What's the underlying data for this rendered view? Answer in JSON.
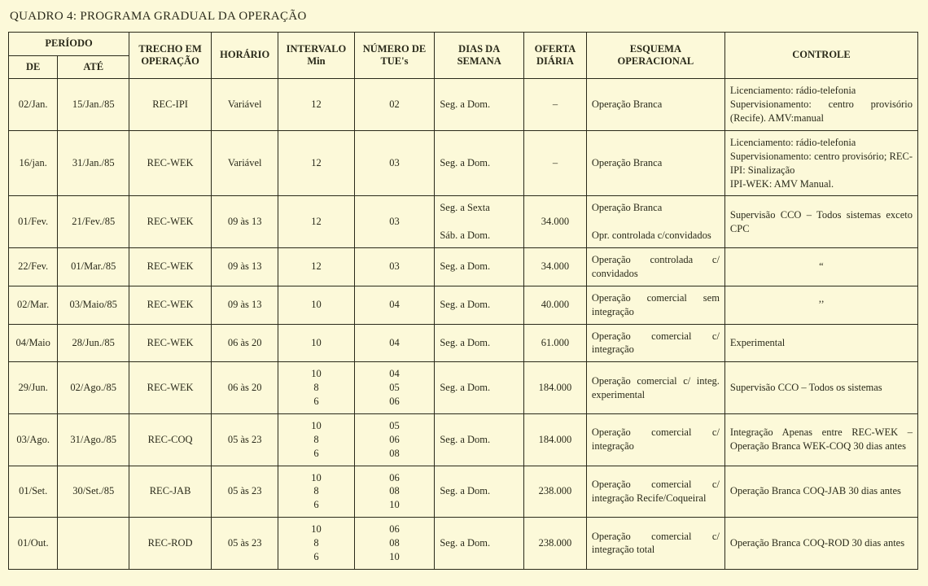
{
  "colors": {
    "background": "#fcf9d9",
    "border": "#2a2a1a",
    "text": "#2a2a1a"
  },
  "typography": {
    "family": "Times New Roman",
    "title_size_pt": 15,
    "body_size_pt": 12.5
  },
  "title": "QUADRO 4: PROGRAMA GRADUAL DA OPERAÇÃO",
  "headers": {
    "periodo": "PERÍODO",
    "de": "DE",
    "ate": "ATÉ",
    "trecho": "TRECHO EM OPERAÇÃO",
    "horario": "HORÁRIO",
    "intervalo": "INTERVALO\nMin",
    "numero_tues": "NÚMERO DE\nTUE's",
    "dias": "DIAS DA\nSEMANA",
    "oferta": "OFERTA\nDIÁRIA",
    "esquema": "ESQUEMA\nOPERACIONAL",
    "controle": "CONTROLE"
  },
  "rows": [
    {
      "de": "02/Jan.",
      "ate": "15/Jan./85",
      "trecho": "REC-IPI",
      "horario": "Variável",
      "intervalo": "12",
      "tues": "02",
      "dias": "Seg. a Dom.",
      "oferta": "–",
      "esquema": "Operação Branca",
      "controle": "Licenciamento: rádio-telefonia\nSupervisionamento: centro provisório (Recife). AMV:manual"
    },
    {
      "de": "16/jan.",
      "ate": "31/Jan./85",
      "trecho": "REC-WEK",
      "horario": "Variável",
      "intervalo": "12",
      "tues": "03",
      "dias": "Seg. a Dom.",
      "oferta": "–",
      "esquema": "Operação Branca",
      "controle": "Licenciamento: rádio-telefonia\nSupervisionamento: centro provisório; REC-IPI: Sinalização\nIPI-WEK: AMV Manual."
    },
    {
      "de": "01/Fev.",
      "ate": "21/Fev./85",
      "trecho": "REC-WEK",
      "horario": "09 às 13",
      "intervalo": "12",
      "tues": "03",
      "dias": "Seg. a Sexta\n\nSáb. a Dom.",
      "oferta": "34.000",
      "esquema": "Operação Branca\n\nOpr. controlada c/convidados",
      "controle": "Supervisão CCO – Todos sistemas exceto CPC"
    },
    {
      "de": "22/Fev.",
      "ate": "01/Mar./85",
      "trecho": "REC-WEK",
      "horario": "09 às 13",
      "intervalo": "12",
      "tues": "03",
      "dias": "Seg. a Dom.",
      "oferta": "34.000",
      "esquema": "Operação controlada c/ convidados",
      "controle": "“"
    },
    {
      "de": "02/Mar.",
      "ate": "03/Maio/85",
      "trecho": "REC-WEK",
      "horario": "09 às 13",
      "intervalo": "10",
      "tues": "04",
      "dias": "Seg. a Dom.",
      "oferta": "40.000",
      "esquema": "Operação comercial sem integração",
      "controle": "’’"
    },
    {
      "de": "04/Maio",
      "ate": "28/Jun./85",
      "trecho": "REC-WEK",
      "horario": "06 às 20",
      "intervalo": "10",
      "tues": "04",
      "dias": "Seg. a Dom.",
      "oferta": "61.000",
      "esquema": "Operação comercial c/ integração",
      "controle": "Experimental"
    },
    {
      "de": "29/Jun.",
      "ate": "02/Ago./85",
      "trecho": "REC-WEK",
      "horario": "06 às 20",
      "intervalo": "10\n8\n6",
      "tues": "04\n05\n06",
      "dias": "Seg. a Dom.",
      "oferta": "184.000",
      "esquema": "Operação comercial c/ integ. experimental",
      "controle": "Supervisão CCO – Todos os sistemas"
    },
    {
      "de": "03/Ago.",
      "ate": "31/Ago./85",
      "trecho": "REC-COQ",
      "horario": "05 às 23",
      "intervalo": "10\n8\n6",
      "tues": "05\n06\n08",
      "dias": "Seg. a Dom.",
      "oferta": "184.000",
      "esquema": "Operação comercial c/ integração",
      "controle": "Integração Apenas entre REC-WEK – Operação Branca WEK-COQ 30 dias antes"
    },
    {
      "de": "01/Set.",
      "ate": "30/Set./85",
      "trecho": "REC-JAB",
      "horario": "05 às 23",
      "intervalo": "10\n8\n6",
      "tues": "06\n08\n10",
      "dias": "Seg. a Dom.",
      "oferta": "238.000",
      "esquema": "Operação comercial c/ integração Recife/Coqueiral",
      "controle": "Operação Branca COQ-JAB 30 dias antes"
    },
    {
      "de": "01/Out.",
      "ate": "",
      "trecho": "REC-ROD",
      "horario": "05 às 23",
      "intervalo": "10\n8\n6",
      "tues": "06\n08\n10",
      "dias": "Seg. a Dom.",
      "oferta": "238.000",
      "esquema": "Operação comercial c/ integração total",
      "controle": "Operação Branca COQ-ROD 30 dias antes"
    }
  ]
}
